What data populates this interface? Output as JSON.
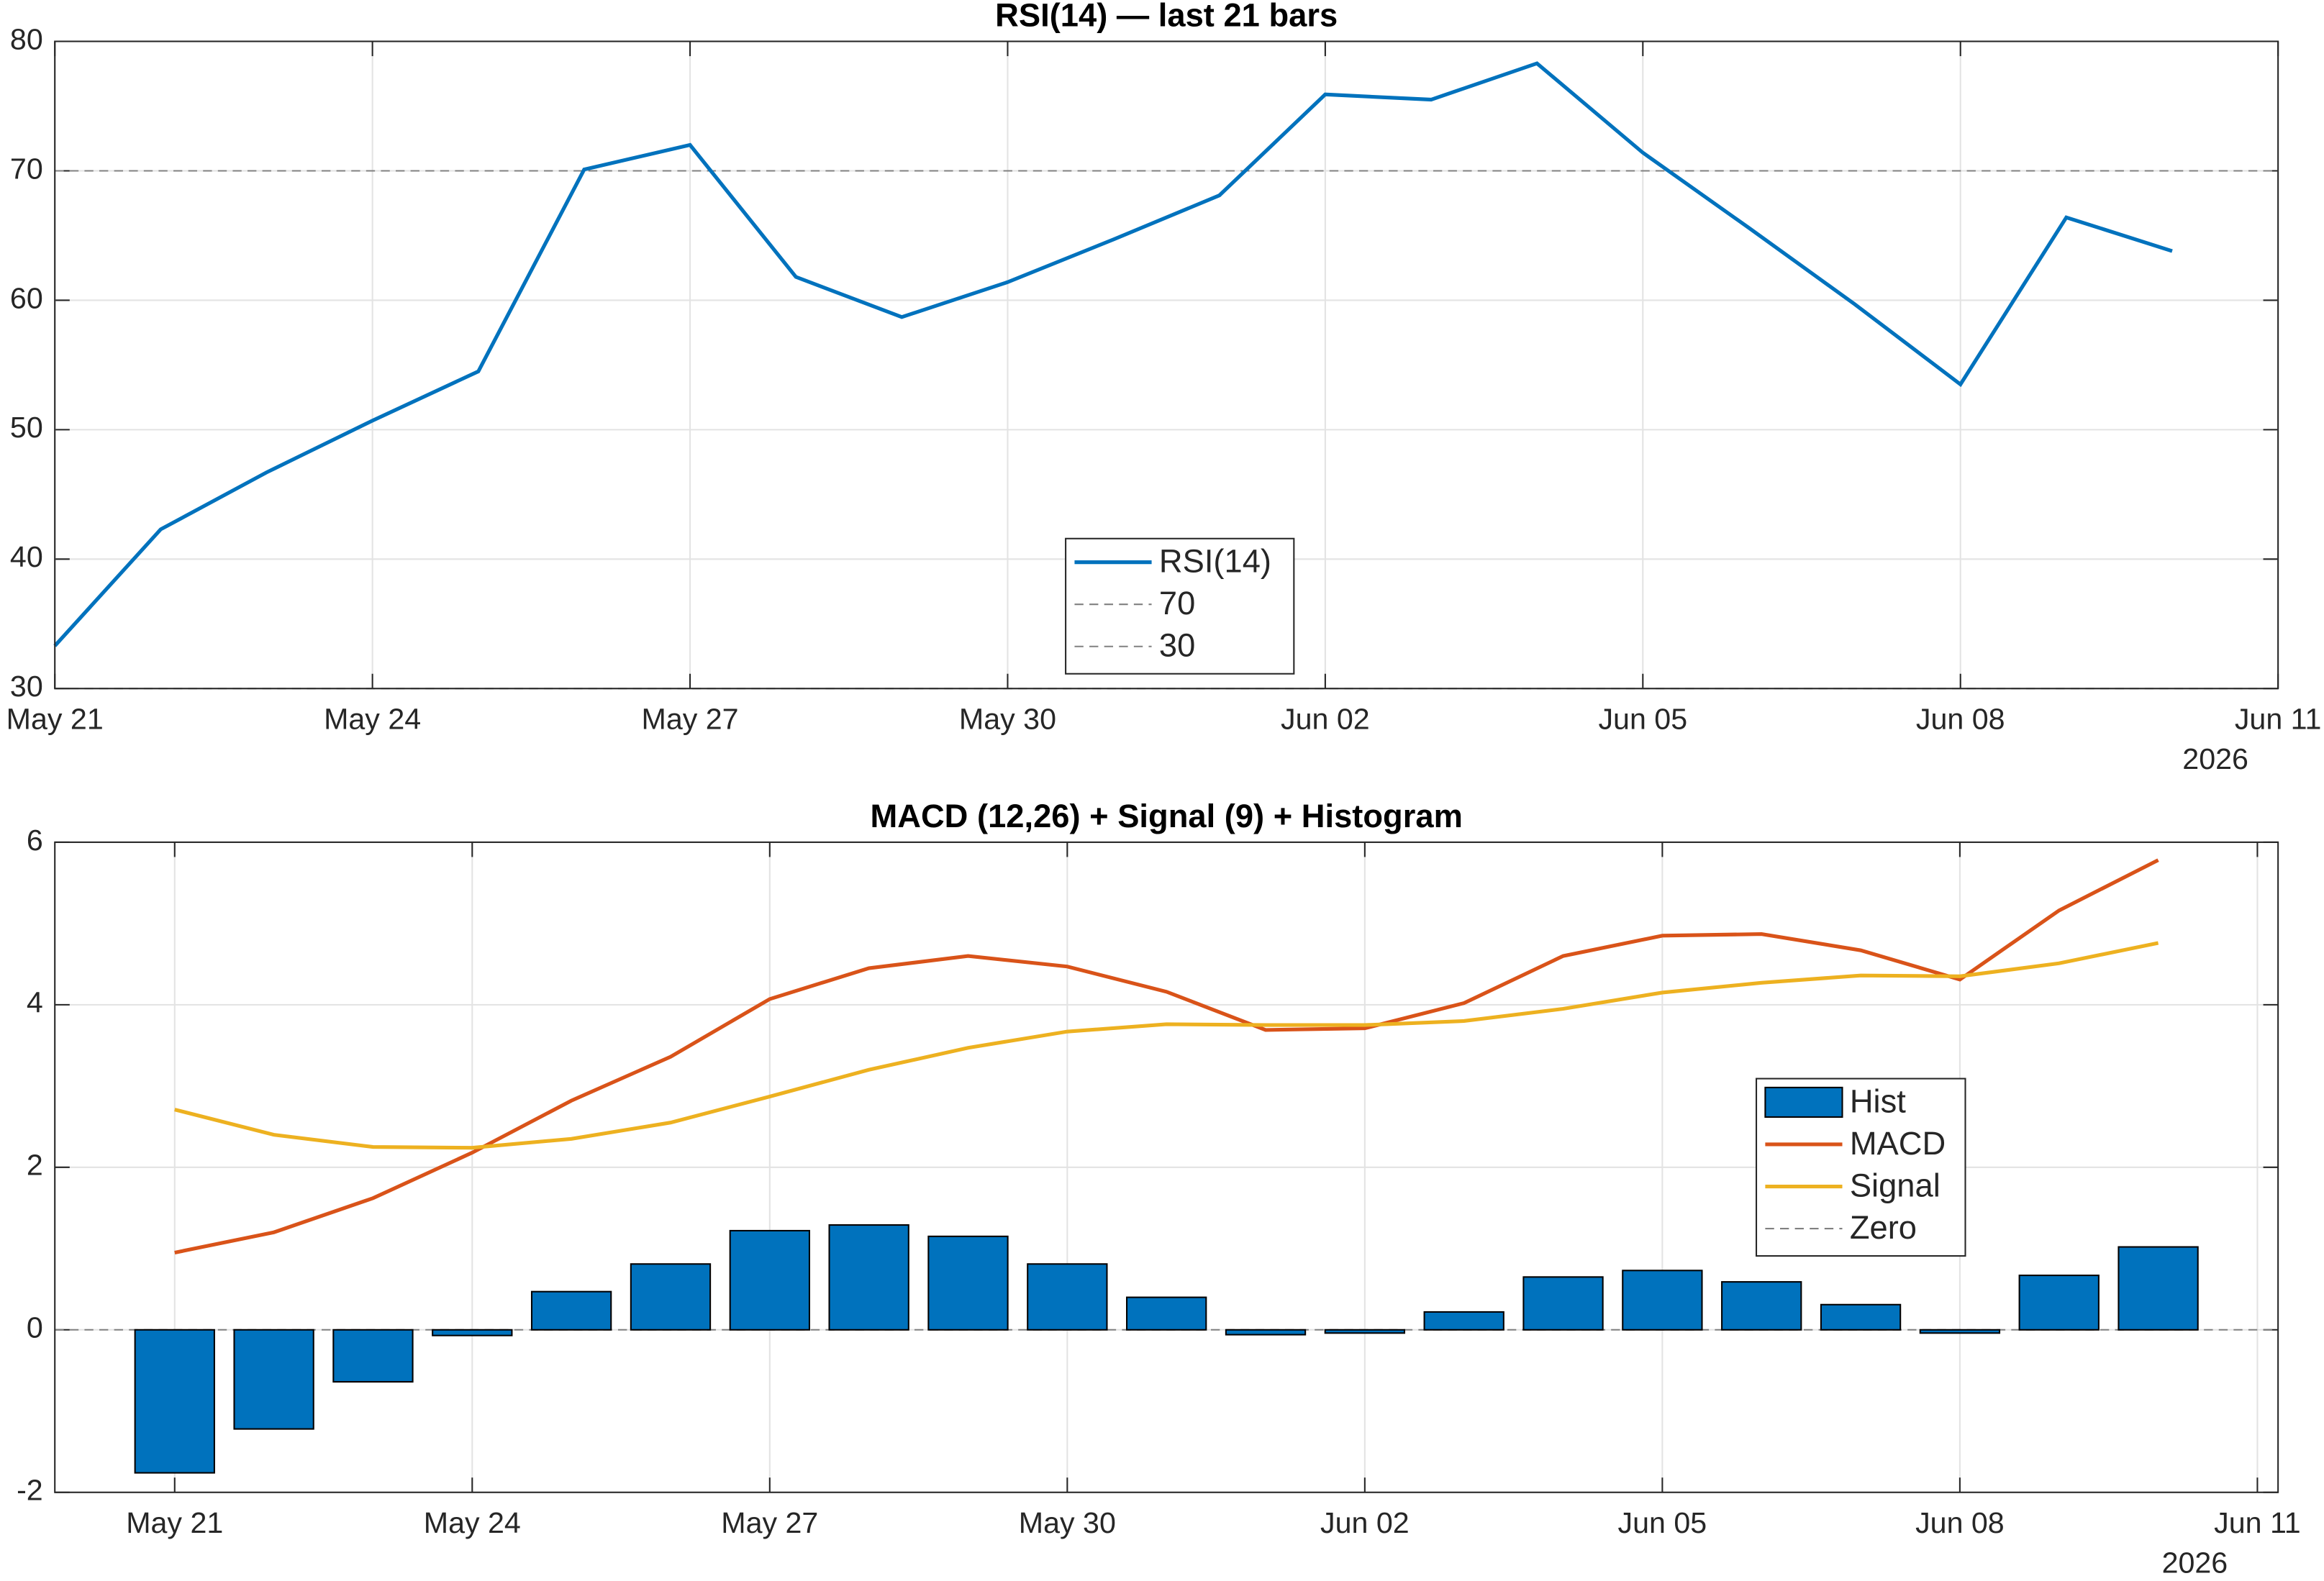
{
  "chart_data": [
    {
      "type": "line",
      "title": "RSI(14) — last 21 bars",
      "x": [
        "2026-05-21",
        "2026-05-22",
        "2026-05-23",
        "2026-05-24",
        "2026-05-25",
        "2026-05-26",
        "2026-05-27",
        "2026-05-28",
        "2026-05-29",
        "2026-05-30",
        "2026-05-31",
        "2026-06-01",
        "2026-06-02",
        "2026-06-03",
        "2026-06-04",
        "2026-06-05",
        "2026-06-06",
        "2026-06-07",
        "2026-06-08",
        "2026-06-09",
        "2026-06-10"
      ],
      "series": [
        {
          "name": "RSI(14)",
          "color": "#0072bd",
          "type": "line",
          "values": [
            33.3,
            42.3,
            46.7,
            50.7,
            54.5,
            70.1,
            72.0,
            61.8,
            58.7,
            61.4,
            64.7,
            68.1,
            75.9,
            75.5,
            78.3,
            71.4,
            65.6,
            59.7,
            53.5,
            66.4,
            63.8
          ]
        }
      ],
      "hlines": [
        {
          "name": "70",
          "value": 70,
          "color": "#808080"
        },
        {
          "name": "30",
          "value": 30,
          "color": "#808080"
        }
      ],
      "xlim": [
        "2026-05-21",
        "2026-06-11"
      ],
      "xticks": [
        {
          "value": "2026-05-21",
          "label": "May 21"
        },
        {
          "value": "2026-05-24",
          "label": "May 24"
        },
        {
          "value": "2026-05-27",
          "label": "May 27"
        },
        {
          "value": "2026-05-30",
          "label": "May 30"
        },
        {
          "value": "2026-06-02",
          "label": "Jun 02"
        },
        {
          "value": "2026-06-05",
          "label": "Jun 05"
        },
        {
          "value": "2026-06-08",
          "label": "Jun 08"
        },
        {
          "value": "2026-06-11",
          "label": "Jun 11"
        }
      ],
      "year_label": "2026",
      "ylim": [
        30,
        80
      ],
      "yticks": [
        30,
        40,
        50,
        60,
        70,
        80
      ],
      "grid": true,
      "legend": "south"
    },
    {
      "type": "bar_line",
      "title": "MACD (12,26) + Signal (9) + Histogram",
      "x": [
        "2026-05-21",
        "2026-05-22",
        "2026-05-23",
        "2026-05-24",
        "2026-05-25",
        "2026-05-26",
        "2026-05-27",
        "2026-05-28",
        "2026-05-29",
        "2026-05-30",
        "2026-05-31",
        "2026-06-01",
        "2026-06-02",
        "2026-06-03",
        "2026-06-04",
        "2026-06-05",
        "2026-06-06",
        "2026-06-07",
        "2026-06-08",
        "2026-06-09",
        "2026-06-10"
      ],
      "series": [
        {
          "name": "Hist",
          "color": "#0072bd",
          "type": "bar",
          "values": [
            -1.76,
            -1.22,
            -0.64,
            -0.07,
            0.47,
            0.81,
            1.22,
            1.29,
            1.15,
            0.81,
            0.4,
            -0.06,
            -0.04,
            0.22,
            0.65,
            0.73,
            0.59,
            0.31,
            -0.04,
            0.67,
            1.02
          ]
        },
        {
          "name": "MACD",
          "color": "#d95319",
          "type": "line",
          "values": [
            0.95,
            1.2,
            1.62,
            2.18,
            2.82,
            3.36,
            4.07,
            4.45,
            4.6,
            4.47,
            4.16,
            3.69,
            3.71,
            4.02,
            4.6,
            4.85,
            4.87,
            4.67,
            4.31,
            5.16,
            5.78
          ]
        },
        {
          "name": "Signal",
          "color": "#edb120",
          "type": "line",
          "values": [
            2.71,
            2.4,
            2.25,
            2.24,
            2.35,
            2.55,
            2.87,
            3.2,
            3.47,
            3.67,
            3.76,
            3.75,
            3.75,
            3.8,
            3.95,
            4.15,
            4.27,
            4.36,
            4.35,
            4.51,
            4.76
          ]
        }
      ],
      "hlines": [
        {
          "name": "Zero",
          "value": 0,
          "color": "#808080"
        }
      ],
      "xlim": [
        "2026-05-19T19:00:00Z",
        "2026-06-11T05:00:00Z"
      ],
      "xticks": [
        {
          "value": "2026-05-21",
          "label": "May 21"
        },
        {
          "value": "2026-05-24",
          "label": "May 24"
        },
        {
          "value": "2026-05-27",
          "label": "May 27"
        },
        {
          "value": "2026-05-30",
          "label": "May 30"
        },
        {
          "value": "2026-06-02",
          "label": "Jun 02"
        },
        {
          "value": "2026-06-05",
          "label": "Jun 05"
        },
        {
          "value": "2026-06-08",
          "label": "Jun 08"
        },
        {
          "value": "2026-06-11",
          "label": "Jun 11"
        }
      ],
      "year_label": "2026",
      "ylim": [
        -2,
        6
      ],
      "yticks": [
        -2,
        0,
        2,
        4,
        6
      ],
      "grid": true,
      "legend": "east"
    }
  ]
}
